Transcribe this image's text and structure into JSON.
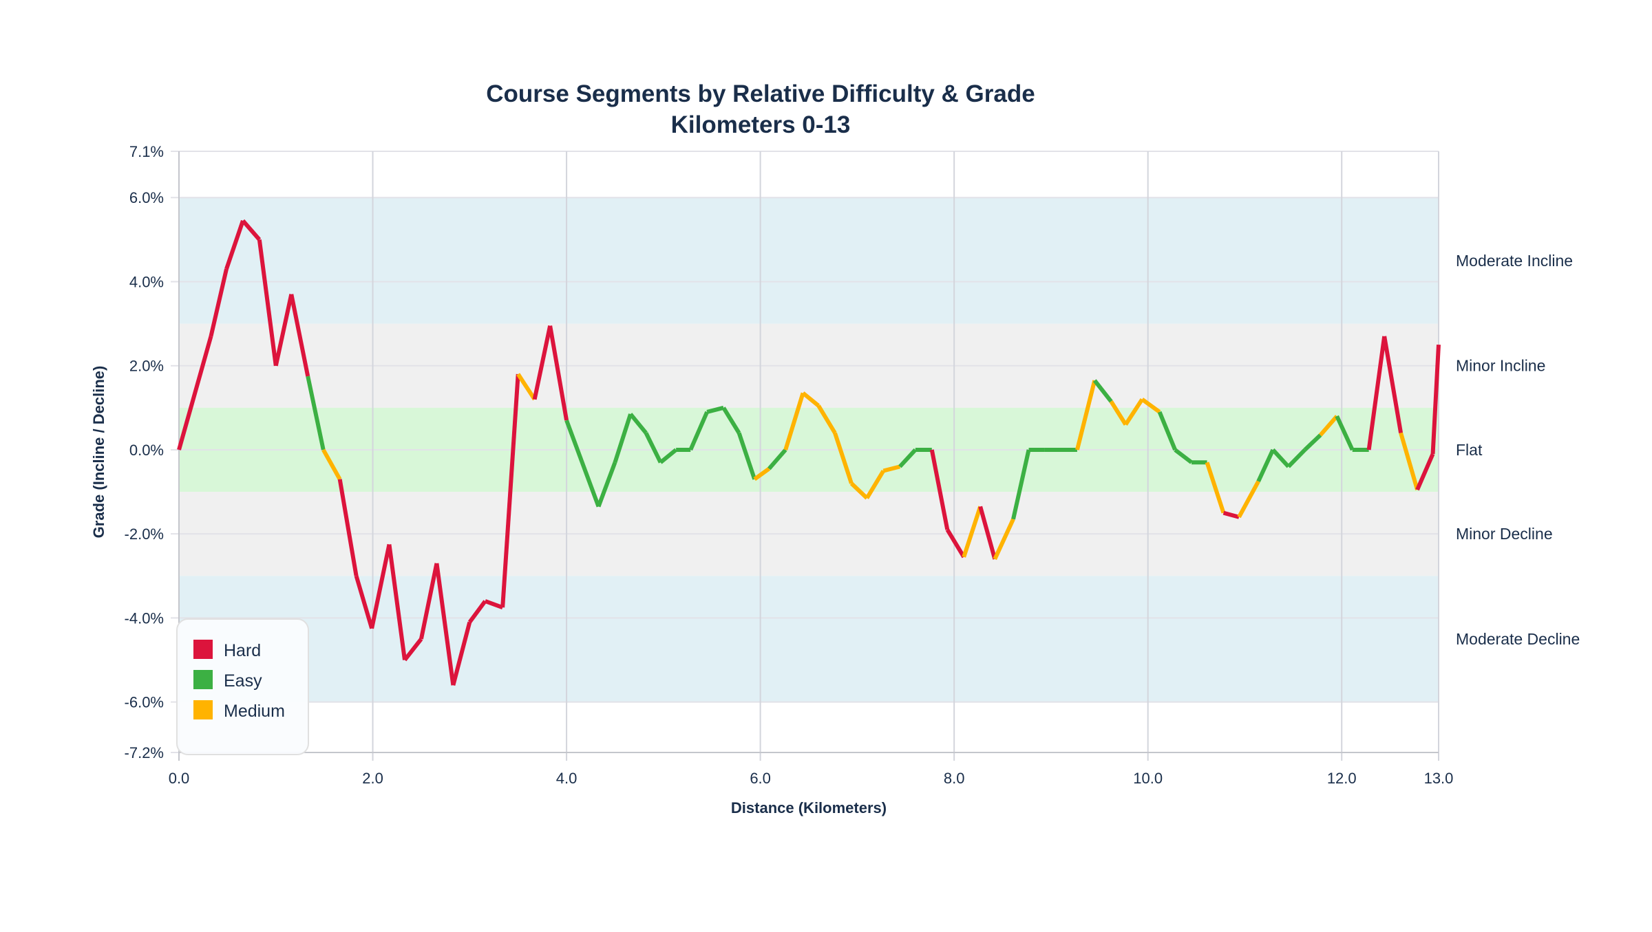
{
  "chart_data": {
    "type": "line",
    "title": "Course Segments by Relative Difficulty & Grade",
    "subtitle": "Kilometers 0-13",
    "xlabel": "Distance (Kilometers)",
    "ylabel": "Grade (Incline / Decline)",
    "xlim": [
      0,
      13
    ],
    "ylim": [
      -7.2,
      7.1
    ],
    "x_ticks": [
      "0.0",
      "2.0",
      "4.0",
      "6.0",
      "8.0",
      "10.0",
      "12.0",
      "13.0"
    ],
    "x_tick_values": [
      0,
      2,
      4,
      6,
      8,
      10,
      12,
      13
    ],
    "y_ticks": [
      "7.1%",
      "6.0%",
      "4.0%",
      "2.0%",
      "0.0%",
      "-2.0%",
      "-4.0%",
      "-6.0%",
      "-7.2%"
    ],
    "y_tick_values": [
      7.1,
      6,
      4,
      2,
      0,
      -2,
      -4,
      -6,
      -7.2
    ],
    "grid": true,
    "bands": [
      {
        "label": "Moderate Incline",
        "from": 3,
        "to": 6,
        "color": "#e1f0f5"
      },
      {
        "label": "Minor Incline",
        "from": 1,
        "to": 3,
        "color": "#f0f0f0"
      },
      {
        "label": "Flat",
        "from": -1,
        "to": 1,
        "color": "#d8f7d8"
      },
      {
        "label": "Minor Decline",
        "from": -3,
        "to": -1,
        "color": "#f0f0f0"
      },
      {
        "label": "Moderate Decline",
        "from": -6,
        "to": -3,
        "color": "#e1f0f5"
      }
    ],
    "legend_position": "bottom-left",
    "legend": [
      {
        "name": "Hard",
        "color": "#dc143c"
      },
      {
        "name": "Easy",
        "color": "#3cb043"
      },
      {
        "name": "Medium",
        "color": "#ffb300"
      }
    ],
    "points": [
      [
        0,
        0
      ],
      [
        0.33,
        2.7
      ],
      [
        0.49,
        4.3
      ],
      [
        0.66,
        5.45
      ],
      [
        0.83,
        5.0
      ],
      [
        1.0,
        2.0
      ],
      [
        1.16,
        3.7
      ],
      [
        1.33,
        1.75
      ],
      [
        1.49,
        0
      ],
      [
        1.66,
        -0.7
      ],
      [
        1.83,
        -3.0
      ],
      [
        1.99,
        -4.25
      ],
      [
        2.17,
        -2.25
      ],
      [
        2.33,
        -5.0
      ],
      [
        2.5,
        -4.5
      ],
      [
        2.66,
        -2.7
      ],
      [
        2.83,
        -5.6
      ],
      [
        3.0,
        -4.1
      ],
      [
        3.16,
        -3.6
      ],
      [
        3.34,
        -3.75
      ],
      [
        3.5,
        1.8
      ],
      [
        3.67,
        1.2
      ],
      [
        3.83,
        2.95
      ],
      [
        4.0,
        0.7
      ],
      [
        4.33,
        -1.35
      ],
      [
        4.5,
        -0.3
      ],
      [
        4.66,
        0.85
      ],
      [
        4.82,
        0.4
      ],
      [
        4.97,
        -0.3
      ],
      [
        5.13,
        0
      ],
      [
        5.28,
        0
      ],
      [
        5.45,
        0.9
      ],
      [
        5.62,
        1.0
      ],
      [
        5.78,
        0.4
      ],
      [
        5.94,
        -0.7
      ],
      [
        6.09,
        -0.45
      ],
      [
        6.26,
        0
      ],
      [
        6.44,
        1.35
      ],
      [
        6.6,
        1.05
      ],
      [
        6.77,
        0.4
      ],
      [
        6.94,
        -0.8
      ],
      [
        7.1,
        -1.15
      ],
      [
        7.27,
        -0.5
      ],
      [
        7.44,
        -0.4
      ],
      [
        7.6,
        0
      ],
      [
        7.77,
        0
      ],
      [
        7.93,
        -1.9
      ],
      [
        8.1,
        -2.55
      ],
      [
        8.27,
        -1.35
      ],
      [
        8.42,
        -2.6
      ],
      [
        8.61,
        -1.65
      ],
      [
        8.77,
        0
      ],
      [
        8.93,
        0
      ],
      [
        9.1,
        0
      ],
      [
        9.27,
        0
      ],
      [
        9.45,
        1.65
      ],
      [
        9.62,
        1.15
      ],
      [
        9.77,
        0.6
      ],
      [
        9.94,
        1.2
      ],
      [
        10.12,
        0.9
      ],
      [
        10.28,
        0
      ],
      [
        10.45,
        -0.3
      ],
      [
        10.61,
        -0.3
      ],
      [
        10.78,
        -1.5
      ],
      [
        10.94,
        -1.6
      ],
      [
        11.14,
        -0.75
      ],
      [
        11.29,
        0
      ],
      [
        11.45,
        -0.4
      ],
      [
        11.62,
        0
      ],
      [
        11.78,
        0.35
      ],
      [
        11.95,
        0.8
      ],
      [
        12.11,
        0
      ],
      [
        12.28,
        0
      ],
      [
        12.44,
        2.7
      ],
      [
        12.61,
        0.4
      ],
      [
        12.78,
        -0.95
      ],
      [
        12.94,
        -0.1
      ],
      [
        13.0,
        2.5
      ]
    ],
    "segment_difficulty": [
      "Hard",
      "Hard",
      "Hard",
      "Hard",
      "Hard",
      "Hard",
      "Hard",
      "Easy",
      "Medium",
      "Hard",
      "Hard",
      "Hard",
      "Hard",
      "Hard",
      "Hard",
      "Hard",
      "Hard",
      "Hard",
      "Hard",
      "Hard",
      "Medium",
      "Hard",
      "Hard",
      "Easy",
      "Easy",
      "Easy",
      "Easy",
      "Easy",
      "Easy",
      "Easy",
      "Easy",
      "Easy",
      "Easy",
      "Easy",
      "Medium",
      "Easy",
      "Medium",
      "Medium",
      "Medium",
      "Medium",
      "Medium",
      "Medium",
      "Medium",
      "Easy",
      "Easy",
      "Hard",
      "Hard",
      "Medium",
      "Hard",
      "Medium",
      "Easy",
      "Easy",
      "Easy",
      "Easy",
      "Medium",
      "Easy",
      "Medium",
      "Medium",
      "Medium",
      "Easy",
      "Easy",
      "Easy",
      "Medium",
      "Hard",
      "Medium",
      "Easy",
      "Easy",
      "Easy",
      "Easy",
      "Medium",
      "Easy",
      "Easy",
      "Hard",
      "Hard",
      "Medium",
      "Hard",
      "Hard"
    ]
  }
}
